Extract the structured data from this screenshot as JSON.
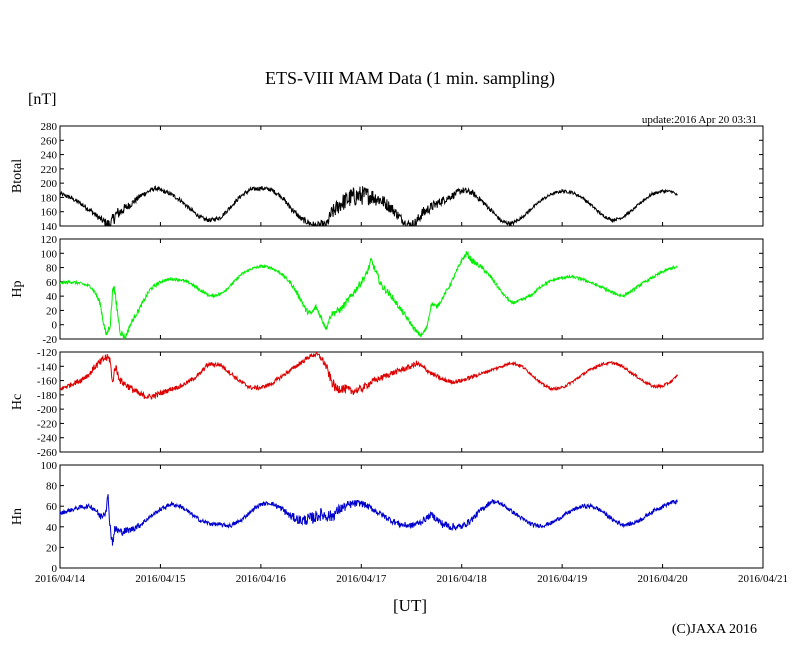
{
  "chart_data": {
    "type": "line",
    "title": "ETS-VIII MAM Data (1 min. sampling)",
    "unit_label": "[nT]",
    "update_text": "update:2016 Apr 20 03:31",
    "xlabel": "[UT]",
    "credit": "(C)JAXA 2016",
    "x_ticks": [
      "2016/04/14",
      "2016/04/15",
      "2016/04/16",
      "2016/04/17",
      "2016/04/18",
      "2016/04/19",
      "2016/04/20",
      "2016/04/21"
    ],
    "x_range_days": [
      0,
      7
    ],
    "grid": false,
    "panels": [
      {
        "name": "Btotal",
        "color": "#000000",
        "ylim": [
          140,
          280
        ],
        "yticks": [
          140,
          160,
          180,
          200,
          220,
          240,
          260,
          280
        ],
        "x_days": [
          0,
          0.1,
          0.2,
          0.3,
          0.4,
          0.45,
          0.5,
          0.55,
          0.6,
          0.7,
          0.8,
          0.9,
          0.95,
          1.0,
          1.1,
          1.2,
          1.3,
          1.4,
          1.45,
          1.5,
          1.6,
          1.7,
          1.8,
          1.9,
          2.0,
          2.1,
          2.2,
          2.3,
          2.4,
          2.5,
          2.55,
          2.6,
          2.65,
          2.7,
          2.8,
          2.9,
          3.0,
          3.1,
          3.2,
          3.3,
          3.4,
          3.45,
          3.5,
          3.55,
          3.6,
          3.7,
          3.8,
          3.9,
          4.0,
          4.1,
          4.2,
          4.3,
          4.4,
          4.5,
          4.6,
          4.7,
          4.8,
          4.9,
          5.0,
          5.1,
          5.2,
          5.3,
          5.4,
          5.5,
          5.6,
          5.7,
          5.8,
          5.9,
          6.0,
          6.1,
          6.15
        ],
        "values": [
          185,
          180,
          172,
          162,
          150,
          145,
          142,
          155,
          160,
          170,
          182,
          190,
          193,
          190,
          185,
          176,
          163,
          152,
          149,
          148,
          152,
          167,
          182,
          191,
          193,
          191,
          182,
          165,
          150,
          143,
          140,
          142,
          140,
          157,
          172,
          180,
          183,
          182,
          176,
          165,
          150,
          143,
          142,
          145,
          157,
          167,
          175,
          182,
          190,
          187,
          175,
          161,
          146,
          143,
          152,
          165,
          177,
          185,
          189,
          187,
          180,
          168,
          155,
          148,
          152,
          162,
          175,
          185,
          189,
          188,
          182
        ],
        "noise": [
          3,
          3,
          3,
          4,
          4,
          6,
          8,
          10,
          8,
          5,
          4,
          3,
          3,
          3,
          3,
          3,
          3,
          3,
          3,
          3,
          3,
          3,
          3,
          3,
          3,
          3,
          3,
          4,
          4,
          5,
          5,
          6,
          7,
          10,
          12,
          14,
          14,
          12,
          10,
          8,
          6,
          6,
          6,
          8,
          8,
          7,
          6,
          5,
          5,
          4,
          4,
          3,
          3,
          3,
          2,
          2,
          2,
          2,
          2,
          2,
          2,
          2,
          2,
          2,
          2,
          2,
          2,
          2,
          2,
          2,
          2
        ]
      },
      {
        "name": "Hp",
        "color": "#00ee00",
        "ylim": [
          -20,
          120
        ],
        "yticks": [
          -20,
          0,
          20,
          40,
          60,
          80,
          100,
          120
        ],
        "x_days": [
          0,
          0.1,
          0.2,
          0.3,
          0.35,
          0.4,
          0.43,
          0.46,
          0.5,
          0.53,
          0.55,
          0.6,
          0.65,
          0.7,
          0.8,
          0.9,
          1.0,
          1.1,
          1.2,
          1.3,
          1.4,
          1.5,
          1.6,
          1.7,
          1.8,
          1.9,
          2.0,
          2.1,
          2.2,
          2.3,
          2.4,
          2.45,
          2.5,
          2.55,
          2.6,
          2.65,
          2.7,
          2.8,
          2.9,
          3.0,
          3.05,
          3.1,
          3.15,
          3.2,
          3.3,
          3.4,
          3.5,
          3.55,
          3.6,
          3.65,
          3.7,
          3.75,
          3.8,
          3.9,
          4.0,
          4.05,
          4.1,
          4.2,
          4.3,
          4.4,
          4.5,
          4.6,
          4.7,
          4.8,
          4.9,
          5.0,
          5.1,
          5.2,
          5.3,
          5.4,
          5.5,
          5.6,
          5.7,
          5.8,
          5.9,
          6.0,
          6.1,
          6.15
        ],
        "values": [
          58,
          60,
          58,
          54,
          45,
          30,
          5,
          -15,
          0,
          58,
          40,
          -10,
          -18,
          0,
          25,
          50,
          60,
          64,
          63,
          58,
          48,
          40,
          43,
          55,
          70,
          78,
          82,
          80,
          72,
          58,
          35,
          20,
          15,
          25,
          10,
          -5,
          15,
          22,
          40,
          60,
          70,
          90,
          72,
          55,
          40,
          20,
          0,
          -10,
          -15,
          -5,
          30,
          25,
          35,
          60,
          90,
          100,
          90,
          80,
          65,
          45,
          30,
          35,
          42,
          55,
          62,
          66,
          67,
          64,
          58,
          52,
          45,
          40,
          48,
          58,
          66,
          74,
          80,
          80
        ],
        "noise": [
          2,
          2,
          2,
          2,
          3,
          4,
          4,
          5,
          5,
          6,
          6,
          5,
          4,
          3,
          3,
          3,
          2,
          2,
          2,
          2,
          2,
          2,
          2,
          2,
          2,
          2,
          2,
          2,
          2,
          3,
          4,
          4,
          4,
          4,
          4,
          4,
          4,
          5,
          5,
          5,
          5,
          5,
          5,
          5,
          4,
          4,
          3,
          3,
          3,
          3,
          3,
          3,
          3,
          3,
          3,
          4,
          4,
          3,
          3,
          2,
          2,
          2,
          2,
          2,
          2,
          2,
          2,
          2,
          2,
          2,
          2,
          2,
          2,
          2,
          2,
          2,
          2,
          2
        ]
      },
      {
        "name": "Hc",
        "color": "#dd0000",
        "ylim": [
          -260,
          -120
        ],
        "yticks": [
          -260,
          -240,
          -220,
          -200,
          -180,
          -160,
          -140,
          -120
        ],
        "x_days": [
          0,
          0.1,
          0.2,
          0.3,
          0.35,
          0.4,
          0.45,
          0.5,
          0.52,
          0.55,
          0.6,
          0.7,
          0.8,
          0.9,
          1.0,
          1.1,
          1.2,
          1.3,
          1.4,
          1.45,
          1.5,
          1.6,
          1.7,
          1.8,
          1.9,
          2.0,
          2.1,
          2.2,
          2.3,
          2.4,
          2.5,
          2.55,
          2.6,
          2.65,
          2.7,
          2.75,
          2.8,
          2.9,
          3.0,
          3.1,
          3.2,
          3.3,
          3.4,
          3.5,
          3.55,
          3.6,
          3.7,
          3.8,
          3.9,
          4.0,
          4.1,
          4.2,
          4.3,
          4.4,
          4.5,
          4.6,
          4.7,
          4.8,
          4.9,
          5.0,
          5.1,
          5.2,
          5.3,
          5.4,
          5.5,
          5.6,
          5.7,
          5.8,
          5.9,
          6.0,
          6.1,
          6.15
        ],
        "values": [
          -172,
          -166,
          -160,
          -150,
          -140,
          -135,
          -128,
          -130,
          -165,
          -140,
          -160,
          -170,
          -180,
          -183,
          -178,
          -172,
          -168,
          -160,
          -150,
          -140,
          -137,
          -138,
          -150,
          -162,
          -170,
          -170,
          -165,
          -155,
          -145,
          -135,
          -125,
          -123,
          -128,
          -140,
          -160,
          -172,
          -170,
          -175,
          -172,
          -162,
          -156,
          -150,
          -145,
          -140,
          -136,
          -140,
          -150,
          -158,
          -162,
          -160,
          -155,
          -150,
          -145,
          -140,
          -135,
          -140,
          -152,
          -165,
          -172,
          -170,
          -162,
          -152,
          -143,
          -137,
          -135,
          -140,
          -150,
          -160,
          -168,
          -168,
          -160,
          -152
        ],
        "noise": [
          3,
          3,
          4,
          4,
          5,
          6,
          6,
          6,
          6,
          6,
          5,
          5,
          5,
          4,
          4,
          3,
          3,
          3,
          3,
          3,
          3,
          3,
          3,
          3,
          3,
          3,
          3,
          3,
          3,
          3,
          3,
          4,
          5,
          6,
          7,
          7,
          7,
          6,
          5,
          5,
          4,
          4,
          4,
          4,
          4,
          4,
          3,
          3,
          3,
          3,
          3,
          2,
          2,
          2,
          2,
          2,
          2,
          2,
          2,
          2,
          2,
          2,
          2,
          2,
          2,
          2,
          2,
          2,
          2,
          2,
          2,
          2
        ]
      },
      {
        "name": "Hn",
        "color": "#0000cc",
        "ylim": [
          0,
          100
        ],
        "yticks": [
          0,
          20,
          40,
          60,
          80,
          100
        ],
        "x_days": [
          0,
          0.1,
          0.2,
          0.3,
          0.35,
          0.4,
          0.45,
          0.48,
          0.5,
          0.52,
          0.55,
          0.6,
          0.7,
          0.8,
          0.9,
          1.0,
          1.1,
          1.2,
          1.3,
          1.4,
          1.5,
          1.6,
          1.7,
          1.8,
          1.9,
          2.0,
          2.1,
          2.2,
          2.3,
          2.4,
          2.5,
          2.6,
          2.7,
          2.8,
          2.9,
          3.0,
          3.1,
          3.2,
          3.3,
          3.4,
          3.5,
          3.6,
          3.7,
          3.8,
          3.9,
          4.0,
          4.1,
          4.2,
          4.3,
          4.4,
          4.5,
          4.6,
          4.7,
          4.8,
          4.9,
          5.0,
          5.1,
          5.2,
          5.3,
          5.4,
          5.5,
          5.6,
          5.7,
          5.8,
          5.9,
          6.0,
          6.1,
          6.15
        ],
        "values": [
          53,
          56,
          59,
          60,
          57,
          50,
          55,
          68,
          40,
          25,
          38,
          35,
          37,
          42,
          50,
          57,
          62,
          60,
          53,
          46,
          43,
          42,
          41,
          46,
          55,
          62,
          63,
          58,
          50,
          46,
          48,
          52,
          50,
          58,
          62,
          63,
          58,
          52,
          46,
          42,
          41,
          45,
          52,
          43,
          40,
          40,
          47,
          57,
          65,
          62,
          55,
          48,
          42,
          41,
          44,
          50,
          56,
          60,
          60,
          55,
          47,
          42,
          43,
          48,
          55,
          60,
          64,
          64
        ],
        "noise": [
          2,
          2,
          2,
          2,
          3,
          4,
          5,
          6,
          6,
          6,
          5,
          4,
          3,
          3,
          2,
          2,
          2,
          2,
          2,
          2,
          2,
          2,
          2,
          2,
          2,
          2,
          2,
          3,
          4,
          5,
          6,
          6,
          6,
          5,
          4,
          3,
          3,
          3,
          3,
          3,
          3,
          3,
          3,
          4,
          4,
          3,
          3,
          3,
          2,
          2,
          2,
          2,
          2,
          2,
          2,
          2,
          2,
          2,
          2,
          2,
          2,
          2,
          2,
          2,
          2,
          2,
          2,
          2
        ]
      }
    ]
  }
}
